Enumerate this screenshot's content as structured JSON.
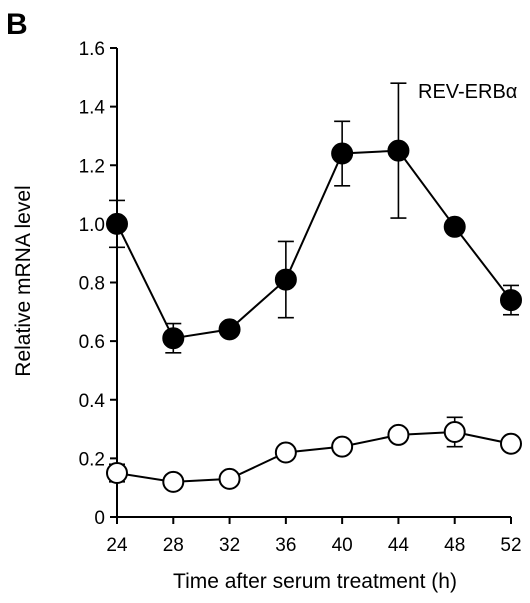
{
  "panel_label": "B",
  "chart_data": {
    "type": "line",
    "annotation": "REV-ERBα",
    "xlabel": "Time after serum treatment (h)",
    "ylabel": "Relative mRNA level",
    "x": [
      24,
      28,
      32,
      36,
      40,
      44,
      48,
      52
    ],
    "xticks": [
      "24",
      "28",
      "32",
      "36",
      "40",
      "44",
      "48",
      "52"
    ],
    "yticks": [
      "0",
      "0.2",
      "0.4",
      "0.6",
      "0.8",
      "1.0",
      "1.2",
      "1.4",
      "1.6"
    ],
    "ylim": [
      0,
      1.6
    ],
    "xlim": [
      24,
      52
    ],
    "grid": false,
    "series": [
      {
        "marker": "filled-circle",
        "color": "#000000",
        "values": [
          1.0,
          0.61,
          0.64,
          0.81,
          1.24,
          1.25,
          0.99,
          0.74
        ],
        "error": [
          0.08,
          0.05,
          0.02,
          0.13,
          0.11,
          0.23,
          0.02,
          0.05
        ]
      },
      {
        "marker": "open-circle",
        "color": "#000000",
        "values": [
          0.15,
          0.12,
          0.13,
          0.22,
          0.24,
          0.28,
          0.29,
          0.25
        ],
        "error": [
          0.03,
          0.01,
          0.01,
          0.01,
          0.01,
          0.01,
          0.05,
          0.01
        ]
      }
    ]
  }
}
